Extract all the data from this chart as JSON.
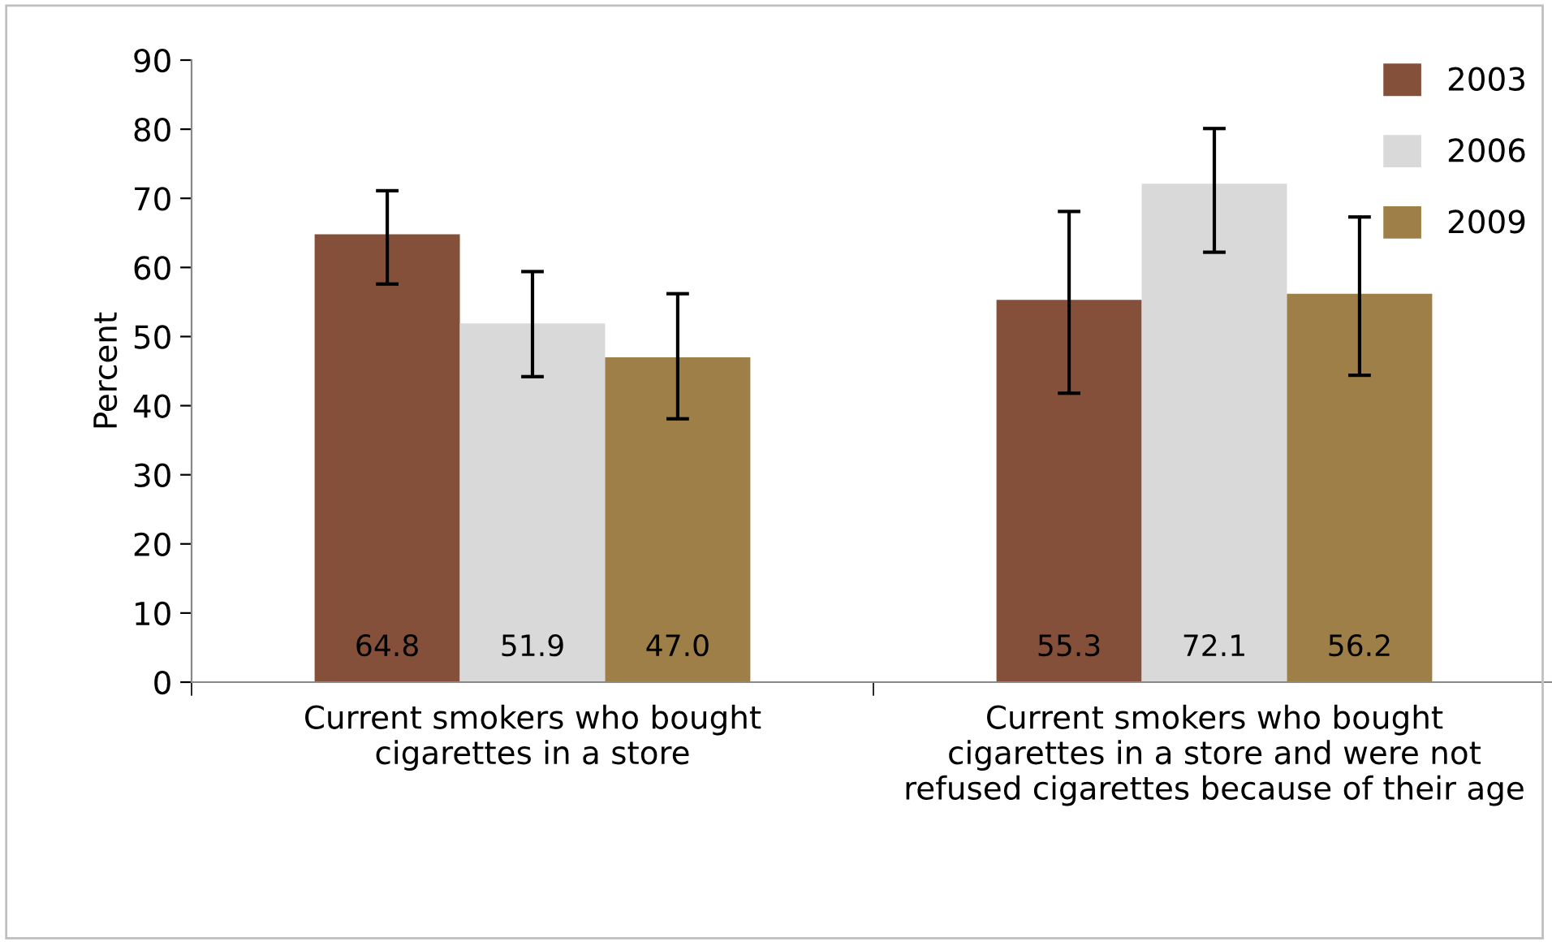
{
  "chart_data": {
    "type": "bar",
    "ylabel": "Percent",
    "categories": [
      "Current smokers who bought\ncigarettes in a store",
      "Current smokers who bought\ncigarettes in a store and were not\nrefused cigarettes because of their age"
    ],
    "series": [
      {
        "name": "2003",
        "color": "#84503a",
        "values": [
          64.8,
          55.3
        ],
        "value_labels": [
          "64.8",
          "55.3"
        ],
        "errors": [
          [
            57.6,
            71.1
          ],
          [
            41.8,
            68.1
          ]
        ]
      },
      {
        "name": "2006",
        "color": "#d9d9d9",
        "values": [
          51.9,
          72.1
        ],
        "value_labels": [
          "51.9",
          "72.1"
        ],
        "errors": [
          [
            44.2,
            59.4
          ],
          [
            62.2,
            80.1
          ]
        ]
      },
      {
        "name": "2009",
        "color": "#9e7f47",
        "values": [
          47.0,
          56.2
        ],
        "value_labels": [
          "47.0",
          "56.2"
        ],
        "errors": [
          [
            38.1,
            56.2
          ],
          [
            44.4,
            67.3
          ]
        ]
      }
    ],
    "ylim": [
      0,
      90
    ],
    "yticks": [
      0,
      10,
      20,
      30,
      40,
      50,
      60,
      70,
      80,
      90
    ],
    "legend": "top right",
    "grid": false
  }
}
